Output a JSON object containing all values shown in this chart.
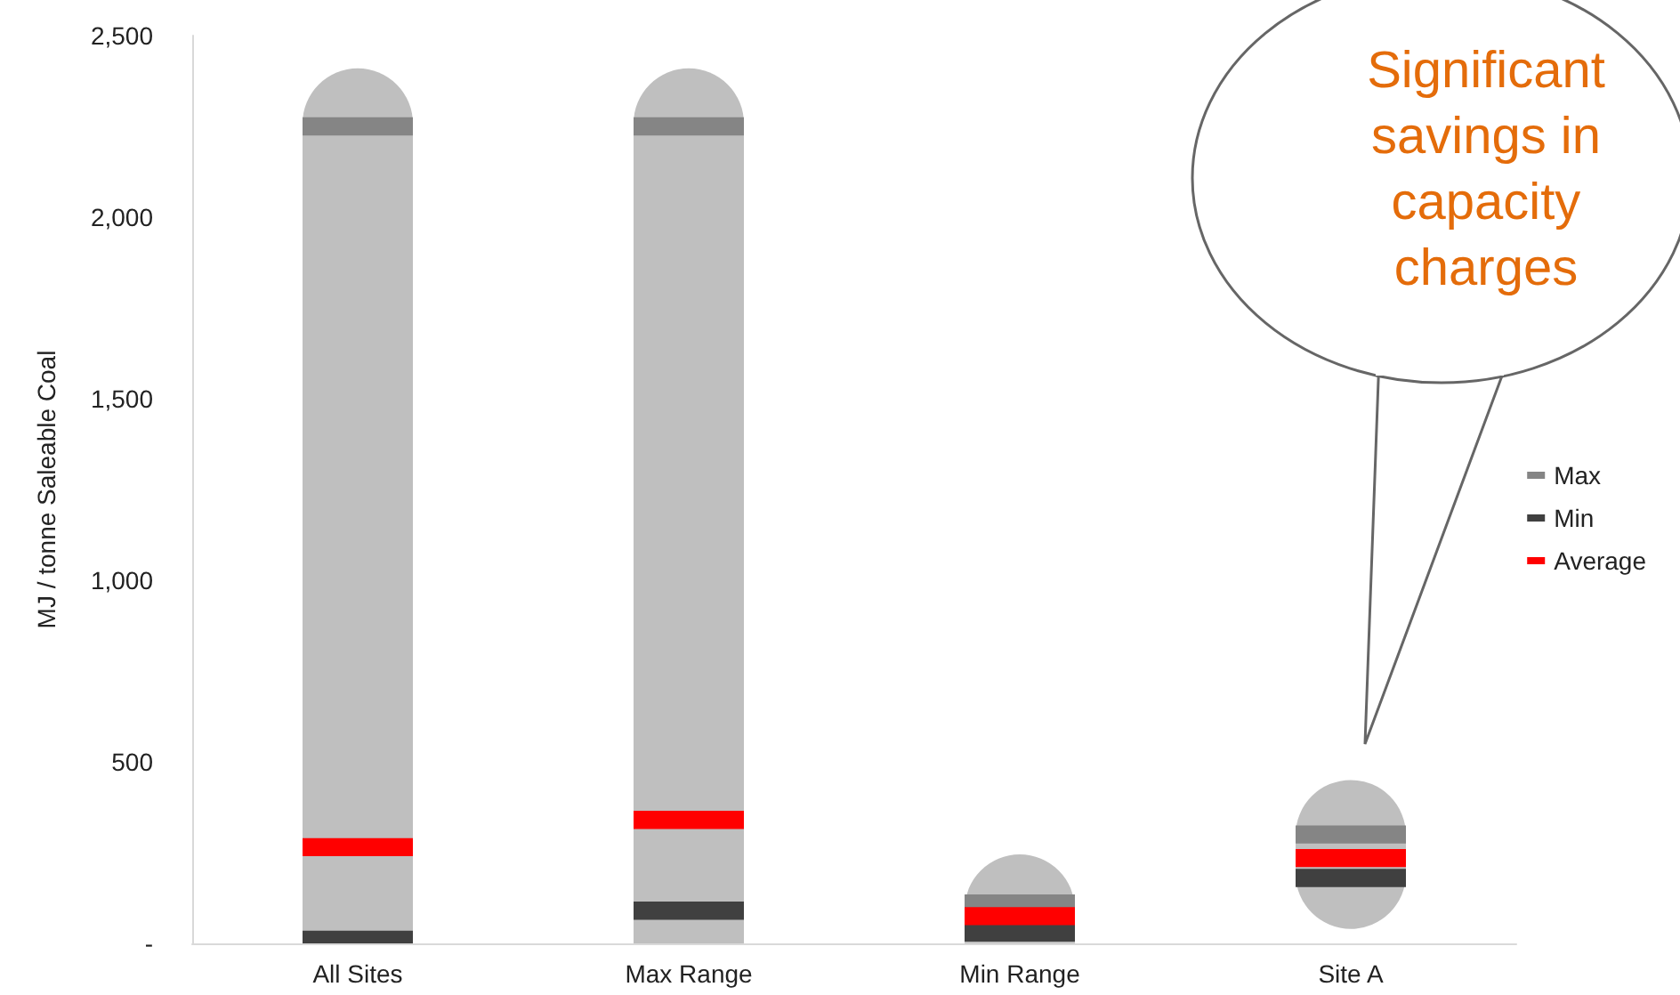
{
  "chart_data": {
    "type": "bar",
    "ylabel": "MJ / tonne Saleable Coal",
    "categories": [
      "All Sites",
      "Max Range",
      "Min Range",
      "Site A"
    ],
    "series": [
      {
        "color": "#bfbfbf",
        "base": [
          0,
          0,
          0,
          40
        ],
        "values": [
          2410,
          2410,
          245,
          410
        ]
      },
      {
        "name": "Max",
        "color": "#858585",
        "base": [
          2225,
          2225,
          85,
          275
        ],
        "values": [
          50,
          50,
          50,
          50
        ]
      },
      {
        "name": "Min",
        "color": "#404040",
        "base": [
          0,
          65,
          5,
          155
        ],
        "values": [
          35,
          50,
          50,
          50
        ]
      },
      {
        "name": "Average",
        "color": "#ff0000",
        "base": [
          240,
          315,
          50,
          210
        ],
        "values": [
          50,
          50,
          50,
          50
        ]
      }
    ],
    "ylim": [
      0,
      2500
    ],
    "yticks": [
      {
        "value": 0,
        "label": "-"
      },
      500,
      {
        "value": 1000,
        "label": "1,000"
      },
      {
        "value": 1500,
        "label": "1,500"
      },
      {
        "value": 2000,
        "label": "2,000"
      },
      {
        "value": 2500,
        "label": "2,500"
      }
    ],
    "grid": false,
    "legend": "right",
    "annotations": [
      "Significant savings in capacity charges"
    ]
  }
}
